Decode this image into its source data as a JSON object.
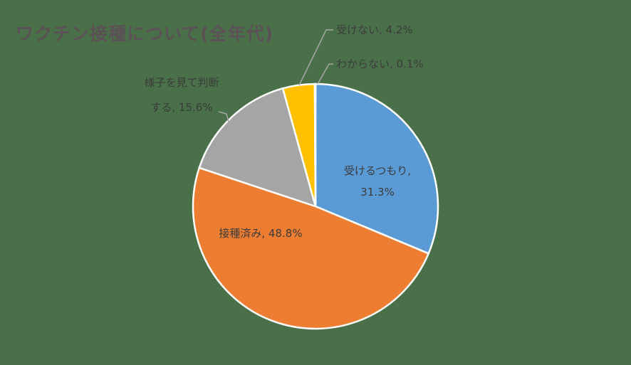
{
  "chart_data": {
    "type": "pie",
    "title": "ワクチン接種について(全年代)",
    "start_angle": "top, clockwise",
    "slices": [
      {
        "label": "受けるつもり",
        "value": 31.3,
        "display": [
          "受けるつもり,",
          "31.3%"
        ],
        "color": "#5b9bd5"
      },
      {
        "label": "接種済み",
        "value": 48.8,
        "display": [
          "接種済み, 48.8%"
        ],
        "color": "#ed7d31"
      },
      {
        "label": "様子を見て判断する",
        "value": 15.6,
        "display": [
          "様子を見て判断",
          "する, 15.6%"
        ],
        "color": "#a5a5a5"
      },
      {
        "label": "受けない",
        "value": 4.2,
        "display": [
          "受けない, 4.2%"
        ],
        "color": "#ffc000"
      },
      {
        "label": "わからない",
        "value": 0.1,
        "display": [
          "わからない, 0.1%"
        ],
        "color": "#4472c4"
      }
    ]
  }
}
